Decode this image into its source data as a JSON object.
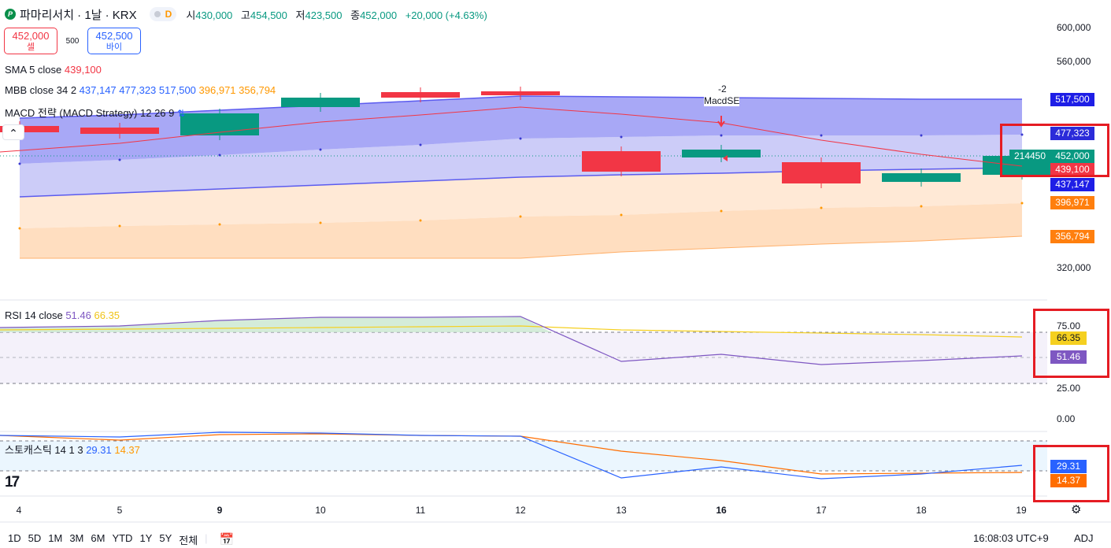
{
  "header": {
    "title": "파마리서치 · 1날 · KRX",
    "status_letter": "D",
    "ohlc": [
      {
        "k": "시",
        "v": "430,000"
      },
      {
        "k": "고",
        "v": "454,500"
      },
      {
        "k": "저",
        "v": "423,500"
      },
      {
        "k": "종",
        "v": "452,000"
      },
      {
        "k": "",
        "v": "+20,000 (+4.63%)"
      }
    ]
  },
  "trade": {
    "sell_price": "452,000",
    "sell_label": "셀",
    "qty": "500",
    "buy_price": "452,500",
    "buy_label": "바이"
  },
  "legends": {
    "sma": {
      "name": "SMA 5 close",
      "v1": "439,100"
    },
    "mbb": {
      "name": "MBB close 34 2",
      "v1": "437,147",
      "v2": "477,323",
      "v3": "517,500",
      "v4": "396,971",
      "v5": "356,794"
    },
    "macd": {
      "name": "MACD 전략 (MACD Strategy) 12 26 9"
    },
    "rsi": {
      "name": "RSI 14 close",
      "v1": "51.46",
      "v2": "66.35"
    },
    "stoch": {
      "name": "스토캐스틱 14 1 3",
      "v1": "29.31",
      "v2": "14.37"
    }
  },
  "signal": {
    "qty": "-2",
    "name": "MacdSE"
  },
  "price_axis": [
    "600,000",
    "560,000",
    "320,000"
  ],
  "price_tags": {
    "upper": "517,500",
    "mid_band": "477,323",
    "last": "452,000",
    "sma": "439,100",
    "lower": "437,147",
    "o1": "396,971",
    "o2": "356,794",
    "volume": "214450"
  },
  "rsi_axis": [
    "75.00",
    "25.00",
    "0.00"
  ],
  "rsi_tags": {
    "ma": "66.35",
    "rsi": "51.46"
  },
  "stoch_tags": {
    "k": "29.31",
    "d": "14.37"
  },
  "x_axis": [
    "4",
    "5",
    "9",
    "10",
    "11",
    "12",
    "13",
    "16",
    "17",
    "18",
    "19"
  ],
  "footer": {
    "ranges": [
      "1D",
      "5D",
      "1M",
      "3M",
      "6M",
      "YTD",
      "1Y",
      "5Y",
      "전체"
    ],
    "time": "16:08:03 UTC+9",
    "adj": "ADJ"
  },
  "icons": [
    "chevron-up-icon",
    "compare-icon",
    "settings-gear-icon",
    "calendar-range-icon",
    "tradingview-logo-icon"
  ],
  "colors": {
    "up": "#089981",
    "down": "#f23645",
    "bb": "#5b5bef",
    "bb_fill": "#8f8ff7",
    "orange": "#ff9800",
    "rsi": "#7e57c2"
  }
}
